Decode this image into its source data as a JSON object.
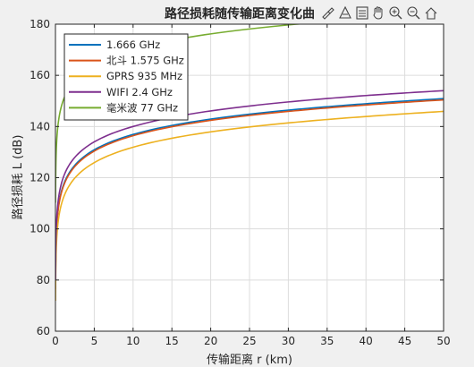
{
  "window": {
    "title": "路径损耗随传输距离变化曲"
  },
  "toolbar": {
    "icons": [
      "brush-icon",
      "data-tip-icon",
      "legend-icon",
      "pan-hand-icon",
      "zoom-in-icon",
      "zoom-out-icon",
      "home-icon"
    ]
  },
  "chart_data": {
    "type": "line",
    "title": "路径损耗随传输距离变化曲",
    "xlabel": "传输距离 r (km)",
    "ylabel": "路径损耗 L (dB)",
    "xlim": [
      0,
      50
    ],
    "ylim": [
      60,
      180
    ],
    "xticks": [
      0,
      5,
      10,
      15,
      20,
      25,
      30,
      35,
      40,
      45,
      50
    ],
    "yticks": [
      60,
      80,
      100,
      120,
      140,
      160,
      180
    ],
    "grid": true,
    "legend_position": "top-left",
    "series": [
      {
        "name": "1.666 GHz",
        "color": "#0072bd",
        "values_at": [
          [
            0.01,
            76.9
          ],
          [
            0.1,
            96.9
          ],
          [
            0.5,
            110.9
          ],
          [
            1,
            116.9
          ],
          [
            5,
            130.9
          ],
          [
            10,
            136.9
          ],
          [
            20,
            142.9
          ],
          [
            30,
            146.4
          ],
          [
            40,
            148.9
          ],
          [
            50,
            150.9
          ]
        ]
      },
      {
        "name": "北斗 1.575 GHz",
        "color": "#d95319",
        "values_at": [
          [
            0.01,
            76.4
          ],
          [
            0.1,
            96.4
          ],
          [
            0.5,
            110.4
          ],
          [
            1,
            116.4
          ],
          [
            5,
            130.4
          ],
          [
            10,
            136.4
          ],
          [
            20,
            142.4
          ],
          [
            30,
            145.9
          ],
          [
            40,
            148.4
          ],
          [
            50,
            150.4
          ]
        ]
      },
      {
        "name": "GPRS 935 MHz",
        "color": "#edb120",
        "values_at": [
          [
            0.01,
            71.9
          ],
          [
            0.1,
            91.9
          ],
          [
            0.5,
            105.9
          ],
          [
            1,
            111.9
          ],
          [
            5,
            125.9
          ],
          [
            10,
            131.9
          ],
          [
            20,
            137.9
          ],
          [
            30,
            141.4
          ],
          [
            40,
            143.9
          ],
          [
            50,
            145.9
          ]
        ]
      },
      {
        "name": "WIFI 2.4 GHz",
        "color": "#7e2f8e",
        "values_at": [
          [
            0.01,
            80.0
          ],
          [
            0.1,
            100.0
          ],
          [
            0.5,
            114.0
          ],
          [
            1,
            120.0
          ],
          [
            5,
            134.0
          ],
          [
            10,
            140.0
          ],
          [
            20,
            146.1
          ],
          [
            30,
            149.6
          ],
          [
            40,
            152.1
          ],
          [
            50,
            154.0
          ]
        ]
      },
      {
        "name": "毫米波 77 GHz",
        "color": "#77ac30",
        "values_at": [
          [
            0.01,
            110.2
          ],
          [
            0.1,
            130.2
          ],
          [
            0.5,
            144.2
          ],
          [
            1,
            150.2
          ],
          [
            5,
            164.2
          ],
          [
            10,
            170.2
          ],
          [
            20,
            176.2
          ],
          [
            30,
            179.7
          ],
          [
            40,
            182.2
          ],
          [
            50,
            184.2
          ]
        ]
      }
    ]
  }
}
